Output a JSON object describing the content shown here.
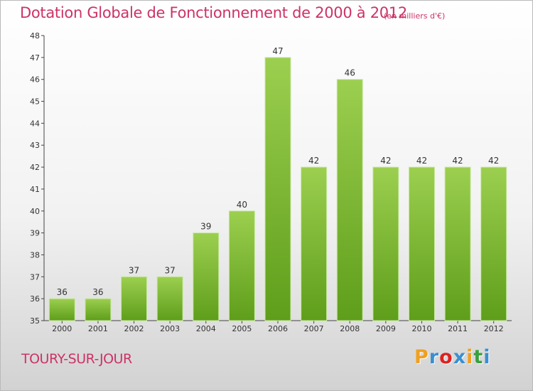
{
  "header": {
    "title": "Dotation Globale de Fonctionnement de 2000 à 2012",
    "unit": "(en milliers d'€)"
  },
  "footer": {
    "commune": "TOURY-SUR-JOUR",
    "brand": "Proxiti",
    "brand_letters": [
      {
        "ch": "P",
        "color": "#f0a020"
      },
      {
        "ch": "r",
        "color": "#3a8fd0"
      },
      {
        "ch": "o",
        "color": "#e02020"
      },
      {
        "ch": "x",
        "color": "#3a8fd0"
      },
      {
        "ch": "i",
        "color": "#f0a020"
      },
      {
        "ch": "t",
        "color": "#3aa040"
      },
      {
        "ch": "i",
        "color": "#3a8fd0"
      }
    ]
  },
  "colors": {
    "accent": "#cc3366",
    "bar_top": "#9ccf4f",
    "bar_bottom": "#5e9e1a",
    "axis": "#444444"
  },
  "chart_data": {
    "type": "bar",
    "title": "Dotation Globale de Fonctionnement de 2000 à 2012",
    "subtitle": "(en milliers d'€)",
    "xlabel": "",
    "ylabel": "",
    "categories": [
      "2000",
      "2001",
      "2002",
      "2003",
      "2004",
      "2005",
      "2006",
      "2007",
      "2008",
      "2009",
      "2010",
      "2011",
      "2012"
    ],
    "values": [
      36,
      36,
      37,
      37,
      39,
      40,
      47,
      42,
      46,
      42,
      42,
      42,
      42
    ],
    "data_labels": [
      "36",
      "36",
      "37",
      "37",
      "39",
      "40",
      "47",
      "42",
      "46",
      "42",
      "42",
      "42",
      "42"
    ],
    "ylim": [
      35,
      48
    ],
    "yticks": [
      35,
      36,
      37,
      38,
      39,
      40,
      41,
      42,
      43,
      44,
      45,
      46,
      47,
      48
    ],
    "grid": false,
    "legend": "none"
  }
}
